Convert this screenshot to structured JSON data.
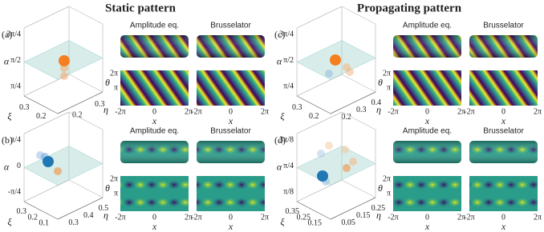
{
  "titles": [
    "Static pattern",
    "Propagating pattern"
  ],
  "panels": [
    {
      "label": "(a)",
      "alpha_label": "α",
      "xi_label": "ξ",
      "eta_label": "η",
      "alpha_ticks": [
        "3π/4",
        "π/2",
        "π/4"
      ],
      "xi_ticks": [
        "0.3",
        "0.2"
      ],
      "eta_ticks": [
        "0.2",
        "0.3"
      ],
      "theta_label": "θ",
      "theta_ticks": [
        "2π",
        "π"
      ],
      "models": [
        {
          "title": "Amplitude eq.",
          "x_ticks": [
            "-2π",
            "0",
            "2π"
          ],
          "x_label": "x"
        },
        {
          "title": "Brusselator",
          "x_ticks": [
            "-2π",
            "0",
            "2π"
          ],
          "x_label": "x"
        }
      ]
    },
    {
      "label": "(c)",
      "alpha_label": "α",
      "xi_label": "ξ",
      "eta_label": "η",
      "alpha_ticks": [
        "3π/4",
        "π/2",
        "π/4"
      ],
      "xi_ticks": [
        "0.3",
        "0.2"
      ],
      "eta_ticks": [
        "0.2",
        "0.3",
        "0.4"
      ],
      "theta_label": "θ",
      "theta_ticks": [
        "2π",
        "π"
      ],
      "models": [
        {
          "title": "Amplitude eq.",
          "x_ticks": [
            "-2π",
            "0",
            "2π"
          ],
          "x_label": "x"
        },
        {
          "title": "Brusselator",
          "x_ticks": [
            "-2π",
            "0",
            "2π"
          ],
          "x_label": "x"
        }
      ]
    },
    {
      "label": "(b)",
      "alpha_label": "α",
      "xi_label": "ξ",
      "eta_label": "η",
      "alpha_ticks": [
        "π/4",
        "0",
        "-π/4"
      ],
      "xi_ticks": [
        "0.3",
        "0.2",
        "0.1"
      ],
      "eta_ticks": [
        "0.3",
        "0.4",
        "0.5"
      ],
      "theta_label": "θ",
      "theta_ticks": [
        "2π",
        "π"
      ],
      "models": [
        {
          "title": "Amplitude eq.",
          "x_ticks": [
            "-2π",
            "0",
            "2π"
          ],
          "x_label": "x"
        },
        {
          "title": "Brusselator",
          "x_ticks": [
            "-2π",
            "0",
            "2π"
          ],
          "x_label": "x"
        }
      ]
    },
    {
      "label": "(d)",
      "alpha_label": "α",
      "xi_label": "ξ",
      "eta_label": "η",
      "alpha_ticks": [
        "3π/8",
        "π/4",
        "π/8"
      ],
      "xi_ticks": [
        "0.35",
        "0.25",
        "0.15"
      ],
      "eta_ticks": [
        "0.05",
        "0.15",
        "0.25"
      ],
      "theta_label": "θ",
      "theta_ticks": [
        "2π",
        "π"
      ],
      "models": [
        {
          "title": "Amplitude eq.",
          "x_ticks": [
            "-2π",
            "0",
            "2π"
          ],
          "x_label": "x"
        },
        {
          "title": "Brusselator",
          "x_ticks": [
            "-2π",
            "0",
            "2π"
          ],
          "x_label": "x"
        }
      ]
    }
  ]
}
